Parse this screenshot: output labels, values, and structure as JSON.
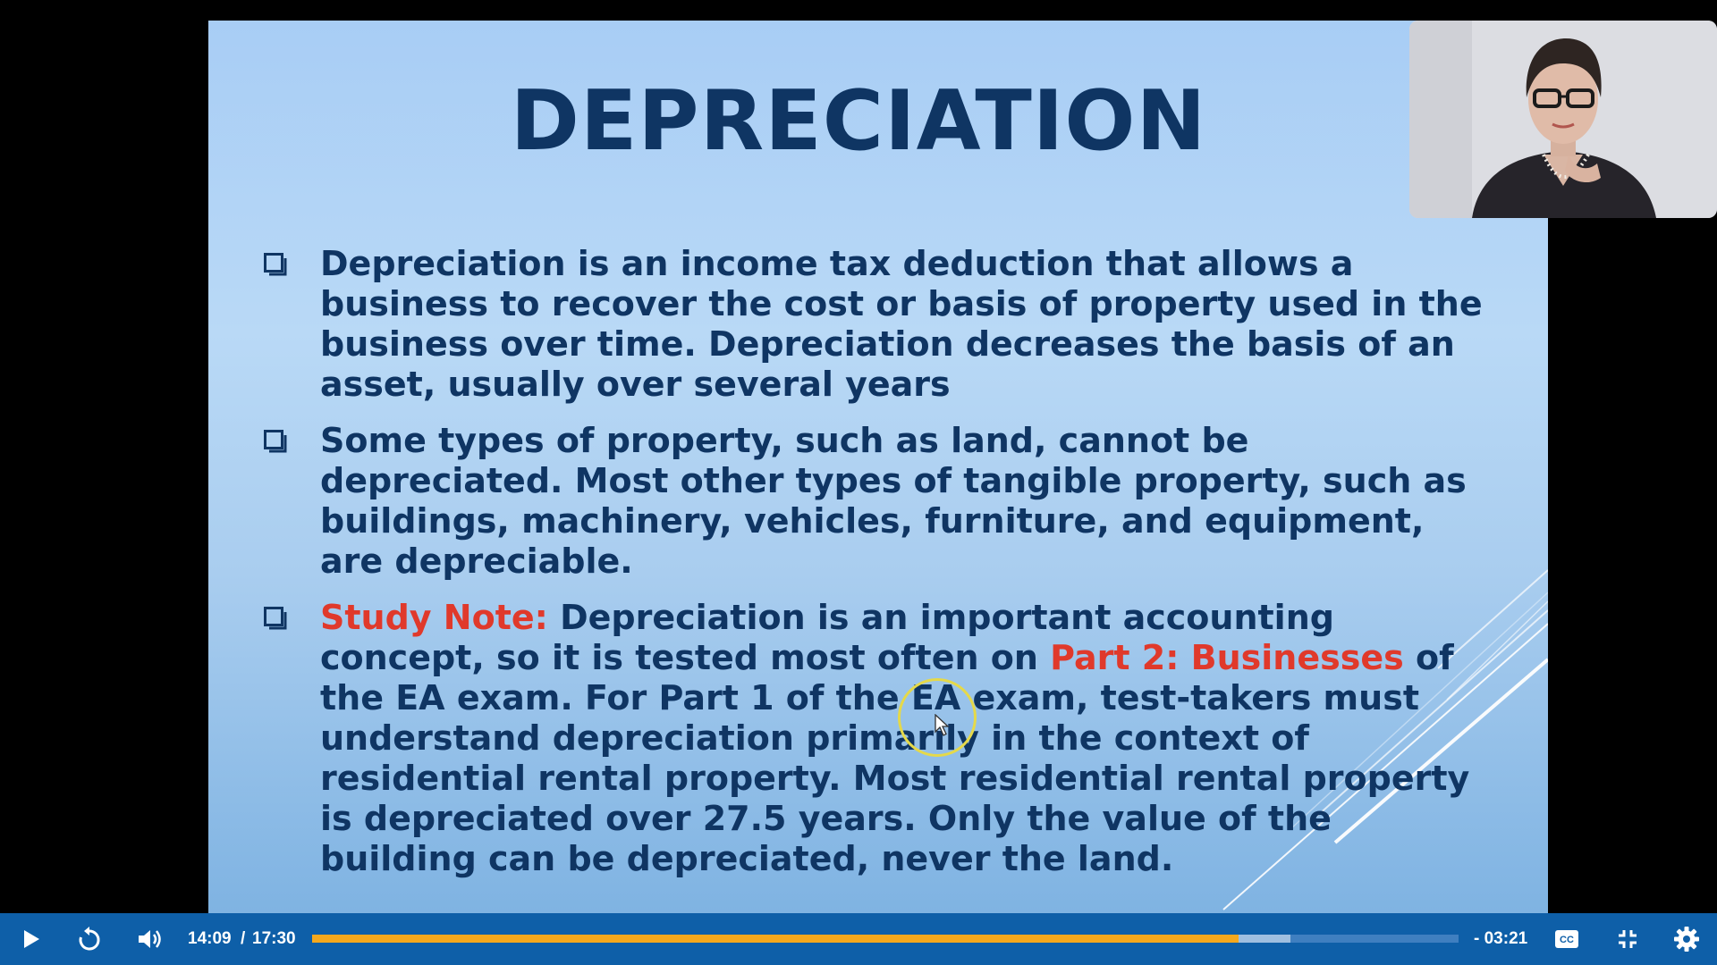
{
  "slide": {
    "title": "DEPRECIATION",
    "bullets": [
      {
        "text": "Depreciation is an income tax deduction that allows a business to recover the cost or basis of property used in the business over time. Depreciation decreases the basis of an asset, usually over several years"
      },
      {
        "text": "Some types of property, such as land, cannot be depreciated. Most other types of tangible property, such as buildings, machinery, vehicles, furniture, and equipment, are depreciable."
      },
      {
        "label": "Study Note:",
        "text_a": " Depreciation is an important accounting concept, so it is tested most often on ",
        "highlight": "Part 2: Businesses",
        "text_b": " of the EA exam. For Part 1 of the EA exam, test-takers must understand depreciation primarily in the context of residential rental property. Most residential rental property is depreciated over 27.5 years. Only the value of the building can be depreciated, never the land."
      }
    ],
    "colors": {
      "text": "#0f3563",
      "highlight": "#e0392b"
    }
  },
  "player": {
    "current_time": "14:09",
    "separator": "/",
    "duration": "17:30",
    "remaining": "- 03:21",
    "progress_fraction": 0.808,
    "buffered_fraction": 0.853,
    "icons": {
      "play": "play-icon",
      "replay": "replay-10-icon",
      "volume": "volume-icon",
      "captions": "closed-captions-icon",
      "fullscreen": "exit-fullscreen-icon",
      "settings": "gear-icon"
    },
    "colors": {
      "bar": "#0e5fa8",
      "progress": "#f4a81d",
      "buffer": "#9fbfe0",
      "track": "#3f7fc0"
    }
  }
}
